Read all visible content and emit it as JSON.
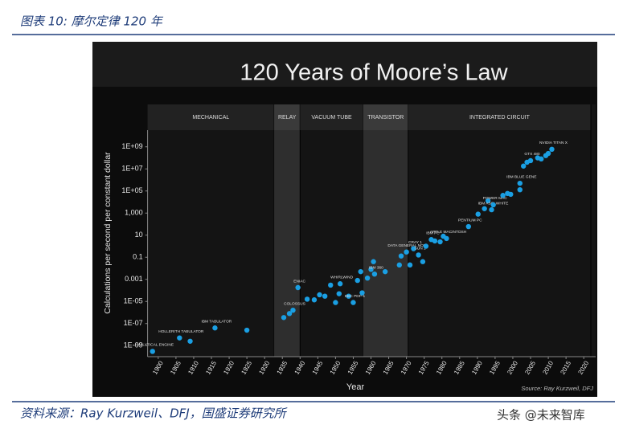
{
  "caption": "图表 10: 摩尔定律 120 年",
  "source": "资料来源：Ray Kurzweil、DFJ，国盛证券研究所",
  "watermark": "头条 @未来智库",
  "chart_data": {
    "type": "scatter",
    "title": "120 Years of Moore’s Law",
    "x_label": "Year",
    "y_label": "Calculations per second per constant dollar",
    "credit": "Source: Ray Kurzweil, DFJ",
    "log_y": true,
    "color": "#1a9fe3",
    "xlim": [
      1897,
      2022
    ],
    "xticks": [
      1900,
      1905,
      1910,
      1915,
      1920,
      1925,
      1930,
      1935,
      1940,
      1945,
      1950,
      1955,
      1960,
      1965,
      1970,
      1975,
      1980,
      1985,
      1990,
      1995,
      2000,
      2005,
      2010,
      2015,
      2020
    ],
    "ylim": [
      1e-10,
      10000000000.0
    ],
    "yticks": [
      {
        "value": 1e-09,
        "label": "1E-09"
      },
      {
        "value": 1e-07,
        "label": "1E-07"
      },
      {
        "value": 1e-05,
        "label": "1E-05"
      },
      0.001,
      0.1,
      10,
      {
        "value": 1000,
        "label": "1,000"
      },
      {
        "value": 100000,
        "label": "1E+05"
      },
      {
        "value": 10000000,
        "label": "1E+07"
      },
      {
        "value": 1000000000,
        "label": "1E+09"
      }
    ],
    "eras": [
      {
        "name": "MECHANICAL",
        "start": 1897,
        "end": 1932.7,
        "shaded": false
      },
      {
        "name": "RELAY",
        "start": 1932.7,
        "end": 1940,
        "shaded": true
      },
      {
        "name": "VACUUM TUBE",
        "start": 1940,
        "end": 1957.8,
        "shaded": false
      },
      {
        "name": "TRANSISTOR",
        "start": 1957.8,
        "end": 1970.5,
        "shaded": true
      },
      {
        "name": "INTEGRATED CIRCUIT",
        "start": 1970.5,
        "end": 2022,
        "shaded": false
      }
    ],
    "x": [
      1898.4,
      1906,
      1909,
      1916,
      1925,
      1935.4,
      1937,
      1938,
      1939.4,
      1942,
      1944,
      1945.5,
      1947,
      1948.6,
      1950,
      1951,
      1951.3,
      1953.7,
      1955,
      1956.2,
      1957.1,
      1957.5,
      1959,
      1960,
      1960.7,
      1961,
      1964,
      1968,
      1968.5,
      1970,
      1971,
      1972,
      1973.4,
      1974.6,
      1975.5,
      1977,
      1978,
      1979.5,
      1980.4,
      1981.3,
      1987.5,
      1990.2,
      1992,
      1993,
      1994,
      1994.5,
      1997.2,
      1998.5,
      1999.4,
      2002,
      2002,
      2003,
      2004,
      2005,
      2007,
      2008,
      2009.3,
      2010,
      2011
    ],
    "values": [
      3e-10,
      5e-09,
      2.5e-09,
      4e-08,
      2.5e-08,
      3.5e-07,
      8e-07,
      1.6e-06,
      0.00018,
      1.6e-05,
      1.4e-05,
      4e-05,
      3e-05,
      0.0003,
      8e-06,
      5e-05,
      0.0004,
      3e-05,
      8e-06,
      0.0008,
      0.005,
      6e-05,
      0.0013,
      0.008,
      0.04,
      0.003,
      0.005,
      0.02,
      0.13,
      0.3,
      0.02,
      0.6,
      0.16,
      0.04,
      1,
      4,
      3,
      2.5,
      8,
      5,
      60,
      800,
      2500,
      13000,
      2000,
      5600,
      40000,
      60000,
      50000,
      130000,
      500000,
      18000000,
      40000000,
      56000000,
      100000000,
      80000000,
      160000000,
      250000000,
      600000000
    ],
    "point_labels": [
      "ANALYTICAL ENGINE",
      "HOLLERITH TABULATOR",
      null,
      "IBM TABULATOR",
      null,
      null,
      null,
      "COLOSSUS",
      "ENIAC",
      null,
      null,
      null,
      null,
      null,
      null,
      null,
      "WHIRLWIND",
      null,
      "DEC PDP-1",
      null,
      null,
      null,
      null,
      null,
      null,
      "IBM 360",
      null,
      null,
      null,
      "DATA GENERAL NOVA",
      null,
      "CRAY 1",
      "SUN 1",
      null,
      null,
      "IBM PC",
      null,
      null,
      null,
      "APPLE MACINTOSH",
      "PENTIUM PC",
      null,
      null,
      null,
      "IBM ASCI WHITE",
      "POWER MAC",
      null,
      null,
      null,
      null,
      "IBM BLUE GENE",
      null,
      null,
      "GTX 480",
      null,
      null,
      null,
      null,
      "NVIDIA TITAN X"
    ]
  }
}
